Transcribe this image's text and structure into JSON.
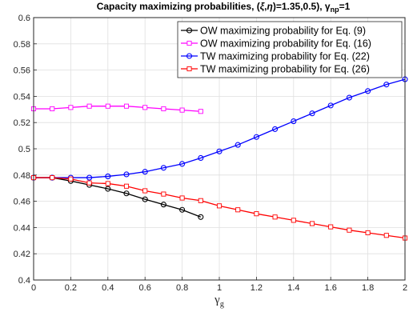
{
  "chart_data": {
    "type": "line",
    "title": {
      "prefix": "Capacity maximizing probabilities, (",
      "xi": "ξ",
      "sep": ",",
      "eta": "η",
      "values": ")=1.35,0.5), ",
      "gamma": "γ",
      "sub": "np",
      "suffix": "=1"
    },
    "xlabel": {
      "symbol": "γ",
      "sub": "g"
    },
    "ylabel": "",
    "xlim": [
      0,
      2
    ],
    "ylim": [
      0.4,
      0.6
    ],
    "xticks": [
      0,
      0.2,
      0.4,
      0.6,
      0.8,
      1,
      1.2,
      1.4,
      1.6,
      1.8,
      2
    ],
    "xtick_labels": [
      "0",
      "0.2",
      "0.4",
      "0.6",
      "0.8",
      "1",
      "1.2",
      "1.4",
      "1.6",
      "1.8",
      "2"
    ],
    "yticks": [
      0.4,
      0.42,
      0.44,
      0.46,
      0.48,
      0.5,
      0.52,
      0.54,
      0.56,
      0.58,
      0.6
    ],
    "ytick_labels": [
      "0.4",
      "0.42",
      "0.44",
      "0.46",
      "0.48",
      "0.5",
      "0.52",
      "0.54",
      "0.56",
      "0.58",
      "0.6"
    ],
    "grid": true,
    "legend_position": "top-right",
    "series": [
      {
        "name": "OW maximizing probability for Eq. (9)",
        "color": "#000000",
        "marker": "circle",
        "x": [
          0,
          0.1,
          0.2,
          0.3,
          0.4,
          0.5,
          0.6,
          0.7,
          0.8,
          0.9
        ],
        "y": [
          0.478,
          0.478,
          0.4755,
          0.4725,
          0.4695,
          0.466,
          0.4615,
          0.4575,
          0.4535,
          0.448
        ]
      },
      {
        "name": "OW maximizing probability for Eq. (16)",
        "color": "#ff00ff",
        "marker": "square",
        "x": [
          0,
          0.1,
          0.2,
          0.3,
          0.4,
          0.5,
          0.6,
          0.7,
          0.8,
          0.9
        ],
        "y": [
          0.5305,
          0.5305,
          0.5315,
          0.5325,
          0.5325,
          0.5325,
          0.5315,
          0.5305,
          0.5295,
          0.5285
        ]
      },
      {
        "name": "TW maximizing probability for Eq. (22)",
        "color": "#0000ff",
        "marker": "circle",
        "x": [
          0,
          0.1,
          0.2,
          0.3,
          0.4,
          0.5,
          0.6,
          0.7,
          0.8,
          0.9,
          1.0,
          1.1,
          1.2,
          1.3,
          1.4,
          1.5,
          1.6,
          1.7,
          1.8,
          1.9,
          2.0
        ],
        "y": [
          0.478,
          0.478,
          0.478,
          0.478,
          0.479,
          0.4805,
          0.4825,
          0.4855,
          0.4885,
          0.493,
          0.498,
          0.503,
          0.509,
          0.515,
          0.521,
          0.527,
          0.533,
          0.539,
          0.544,
          0.549,
          0.553
        ]
      },
      {
        "name": "TW maximizing probability for Eq. (26)",
        "color": "#ff0000",
        "marker": "square",
        "x": [
          0,
          0.1,
          0.2,
          0.3,
          0.4,
          0.5,
          0.6,
          0.7,
          0.8,
          0.9,
          1.0,
          1.1,
          1.2,
          1.3,
          1.4,
          1.5,
          1.6,
          1.7,
          1.8,
          1.9,
          2.0
        ],
        "y": [
          0.478,
          0.478,
          0.477,
          0.474,
          0.4735,
          0.4715,
          0.468,
          0.4655,
          0.4625,
          0.4605,
          0.4565,
          0.4535,
          0.4505,
          0.448,
          0.4455,
          0.443,
          0.4405,
          0.438,
          0.436,
          0.434,
          0.432
        ]
      }
    ]
  }
}
